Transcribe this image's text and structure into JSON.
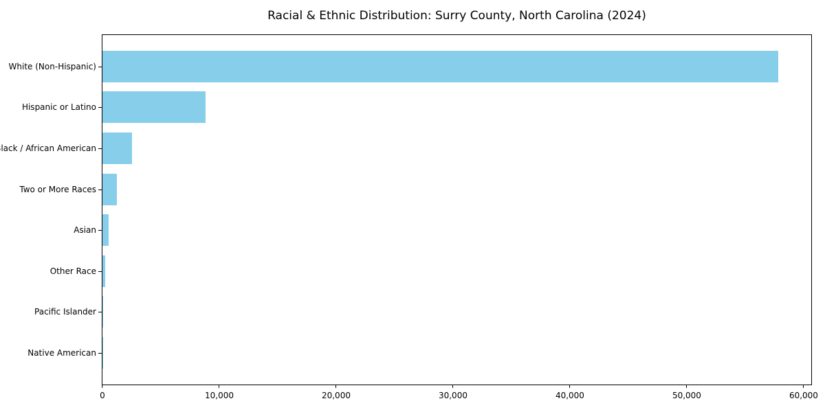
{
  "chart_data": {
    "type": "bar",
    "orientation": "horizontal",
    "title": "Racial & Ethnic Distribution: Surry County, North Carolina (2024)",
    "categories": [
      "White (Non-Hispanic)",
      "Hispanic or Latino",
      "Black / African American",
      "Two or More Races",
      "Asian",
      "Other Race",
      "Pacific Islander",
      "Native American"
    ],
    "values": [
      57800,
      8850,
      2550,
      1250,
      550,
      220,
      40,
      30
    ],
    "xlabel": "",
    "ylabel": "",
    "xlim": [
      0,
      60650
    ],
    "x_ticks": [
      {
        "value": 0,
        "label": "0"
      },
      {
        "value": 10000,
        "label": "10,000"
      },
      {
        "value": 20000,
        "label": "20,000"
      },
      {
        "value": 30000,
        "label": "30,000"
      },
      {
        "value": 40000,
        "label": "40,000"
      },
      {
        "value": 50000,
        "label": "50,000"
      },
      {
        "value": 60000,
        "label": "60,000"
      }
    ],
    "bar_color": "#87CEEB",
    "frame_color": "#000000",
    "background_color": "#FFFFFF",
    "grid": false,
    "legend": "none"
  }
}
